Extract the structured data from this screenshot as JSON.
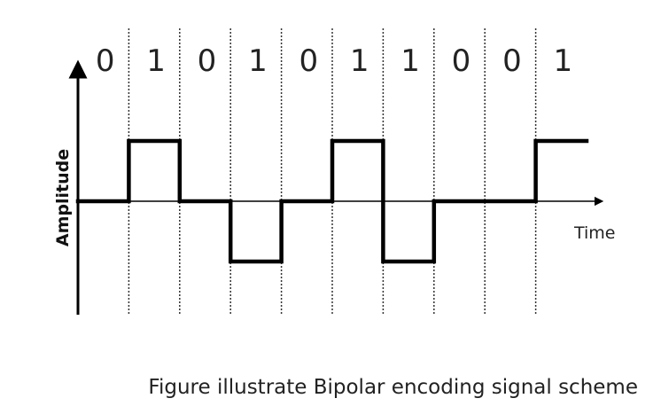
{
  "bits": [
    "0",
    "1",
    "0",
    "1",
    "0",
    "1",
    "1",
    "0",
    "0",
    "1"
  ],
  "levels": [
    0,
    1,
    0,
    -1,
    0,
    1,
    -1,
    0,
    0,
    1
  ],
  "y_axis_label": "Amplitude",
  "x_axis_label": "Time",
  "caption": "Figure illustrate Bipolar encoding signal scheme"
}
